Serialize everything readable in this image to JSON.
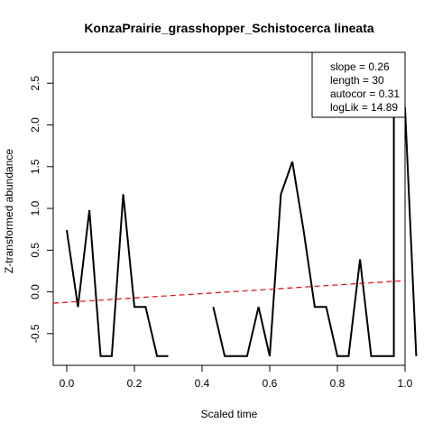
{
  "chart_data": {
    "type": "line",
    "title": "KonzaPrairie_grasshopper_Schistocerca lineata",
    "xlabel": "Scaled time",
    "ylabel": "Z-transformed abundance",
    "xlim": [
      -0.04,
      1.0
    ],
    "ylim": [
      -0.88,
      2.87
    ],
    "x_ticks": [
      0.0,
      0.2,
      0.4,
      0.6,
      0.8,
      1.0
    ],
    "x_tick_labels": [
      "0.0",
      "0.2",
      "0.4",
      "0.6",
      "0.8",
      "1.0"
    ],
    "y_ticks": [
      -0.5,
      0.0,
      0.5,
      1.0,
      1.5,
      2.0,
      2.5
    ],
    "y_tick_labels": [
      "-0.5",
      "0.0",
      "0.5",
      "1.0",
      "1.5",
      "2.0",
      "2.5"
    ],
    "grid": false,
    "series": [
      {
        "color": "#000000",
        "style": "solid",
        "points": [
          [
            0.0,
            0.74
          ],
          [
            0.033,
            -0.18
          ],
          [
            0.067,
            0.98
          ],
          [
            0.1,
            -0.77
          ],
          [
            0.133,
            -0.77
          ],
          [
            0.167,
            1.17
          ],
          [
            0.2,
            -0.18
          ],
          [
            0.233,
            -0.18
          ],
          [
            0.267,
            -0.77
          ],
          [
            0.3,
            -0.77
          ],
          [
            0.333,
            null
          ],
          [
            0.367,
            null
          ],
          [
            0.4,
            null
          ],
          [
            0.433,
            -0.18
          ],
          [
            0.467,
            -0.77
          ],
          [
            0.5,
            -0.77
          ],
          [
            0.533,
            -0.77
          ],
          [
            0.567,
            -0.18
          ],
          [
            0.6,
            -0.77
          ],
          [
            0.633,
            1.17
          ],
          [
            0.667,
            1.56
          ],
          [
            0.7,
            0.74
          ],
          [
            0.733,
            -0.18
          ],
          [
            0.767,
            -0.18
          ],
          [
            0.8,
            -0.77
          ],
          [
            0.833,
            -0.77
          ],
          [
            0.867,
            0.39
          ],
          [
            0.9,
            -0.77
          ],
          [
            0.933,
            -0.77
          ],
          [
            0.967,
            -0.77
          ],
          [
            0.967,
            2.2
          ],
          [
            1.0,
            2.2
          ],
          [
            1.033,
            -0.77
          ]
        ]
      },
      {
        "color": "#e31a1c",
        "style": "dashed",
        "trend": true,
        "points": [
          [
            -0.04,
            -0.135
          ],
          [
            1.0,
            0.135
          ]
        ]
      }
    ],
    "legend": {
      "position": "top-right",
      "entries": [
        "slope = 0.26",
        "length = 30",
        "autocor = 0.31",
        "logLik = 14.89"
      ]
    }
  }
}
